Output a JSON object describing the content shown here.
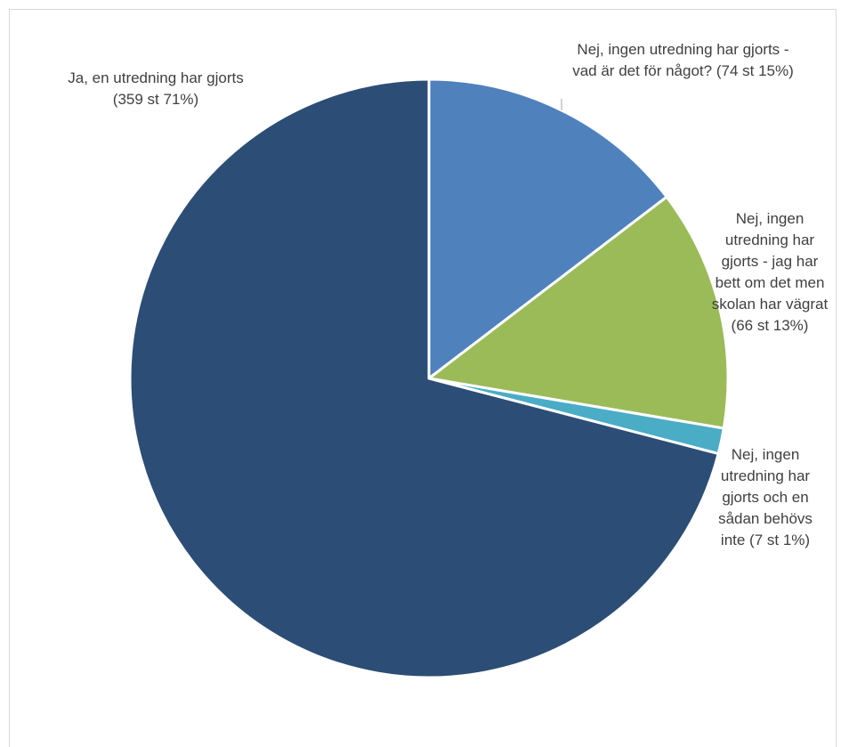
{
  "chart_data": {
    "type": "pie",
    "title": "",
    "slices": [
      {
        "label_lines": [
          "Nej, ingen utredning har gjorts -",
          "vad är det för något? (74 st 15%)"
        ],
        "value": 74,
        "percent": 15,
        "color": "#4f81bd"
      },
      {
        "label_lines": [
          "Nej, ingen",
          "utredning har",
          "gjorts - jag har",
          "bett om det men",
          "skolan har vägrat",
          "(66 st 13%)"
        ],
        "value": 66,
        "percent": 13,
        "color": "#9bbb59"
      },
      {
        "label_lines": [
          "Nej, ingen",
          "utredning har",
          "gjorts och en",
          "sådan behövs",
          "inte (7 st 1%)"
        ],
        "value": 7,
        "percent": 1,
        "color": "#4bacc6"
      },
      {
        "label_lines": [
          "Ja, en utredning har gjorts",
          "(359 st 71%)"
        ],
        "value": 359,
        "percent": 71,
        "color": "#2c4d75"
      }
    ],
    "start_angle_deg": 0,
    "direction": "clockwise",
    "legend": "none"
  }
}
